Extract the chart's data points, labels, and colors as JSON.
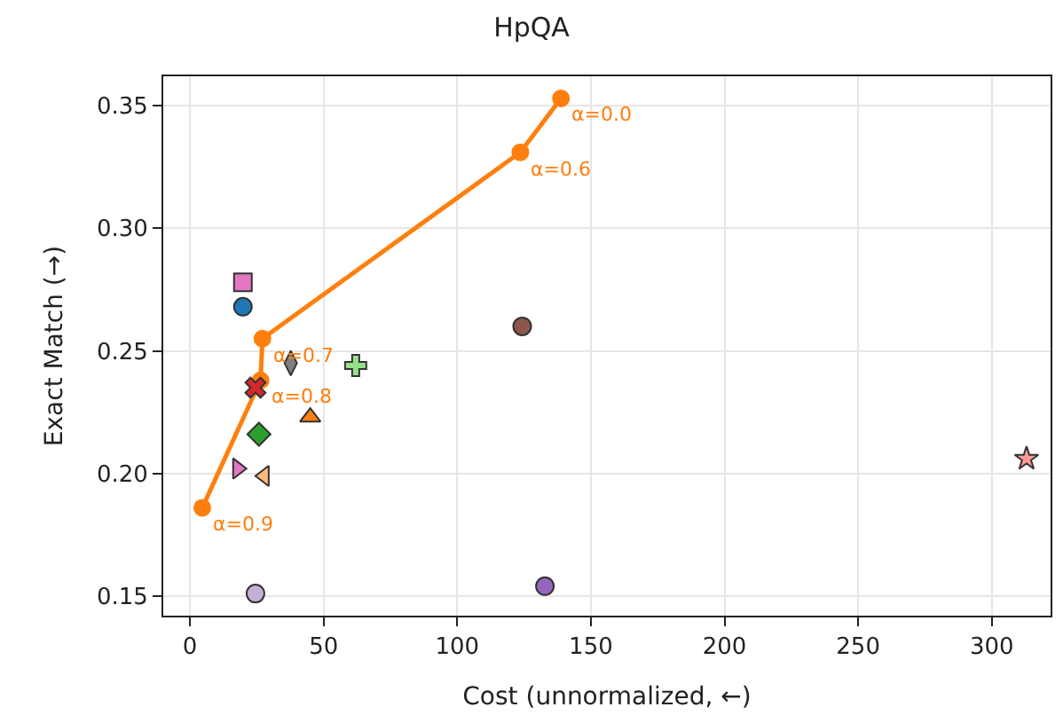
{
  "chart_data": {
    "type": "scatter",
    "title": "HpQA",
    "xlabel": "Cost (unnormalized, ←)",
    "ylabel": "Exact Match (→)",
    "xlim": [
      -10,
      322
    ],
    "xticks": [
      0,
      50,
      100,
      150,
      200,
      250,
      300
    ],
    "ylim": [
      0.142,
      0.362
    ],
    "yticks": [
      {
        "value": 0.15,
        "label": "0.15"
      },
      {
        "value": 0.2,
        "label": "0.20"
      },
      {
        "value": 0.25,
        "label": "0.25"
      },
      {
        "value": 0.3,
        "label": "0.30"
      },
      {
        "value": 0.35,
        "label": "0.35"
      }
    ],
    "grid": true,
    "legend": false,
    "annotations": [
      {
        "text": "α=0.0",
        "x": 138.8,
        "y": 0.353
      },
      {
        "text": "α=0.6",
        "x": 123.6,
        "y": 0.331
      },
      {
        "text": "α=0.7",
        "x": 27.1,
        "y": 0.255
      },
      {
        "text": "α=0.8",
        "x": 26.4,
        "y": 0.238
      },
      {
        "text": "α=0.9",
        "x": 4.6,
        "y": 0.186
      }
    ],
    "series": [
      {
        "type": "line",
        "color": "#ff7f0e",
        "marker": "circle",
        "line_style": "solid",
        "x": [
          138.8,
          123.6,
          27.1,
          26.4,
          4.6
        ],
        "values": [
          0.353,
          0.331,
          0.255,
          0.238,
          0.186
        ]
      },
      {
        "color": "#e377c2",
        "marker": "square",
        "x": [
          19.8
        ],
        "values": [
          0.278
        ]
      },
      {
        "color": "#1f77b4",
        "marker": "circle",
        "x": [
          19.8
        ],
        "values": [
          0.268
        ]
      },
      {
        "color": "#d62728",
        "marker": "cross",
        "x": [
          24.5
        ],
        "values": [
          0.235
        ]
      },
      {
        "color": "#7f7f7f",
        "marker": "diamond-tall",
        "x": [
          37.7
        ],
        "values": [
          0.245
        ]
      },
      {
        "color": "#98df8a",
        "marker": "plus",
        "x": [
          62
        ],
        "values": [
          0.244
        ]
      },
      {
        "color": "#ff7f0e",
        "marker": "triangle",
        "x": [
          45
        ],
        "values": [
          0.223
        ]
      },
      {
        "color": "#2ca02c",
        "marker": "diamond",
        "x": [
          25.8
        ],
        "values": [
          0.216
        ]
      },
      {
        "color": "#e377c2",
        "marker": "triangle-right",
        "x": [
          17.8
        ],
        "values": [
          0.202
        ]
      },
      {
        "color": "#ffbb78",
        "marker": "triangle-left",
        "x": [
          27.8
        ],
        "values": [
          0.199
        ]
      },
      {
        "color": "#c5b0d5",
        "x": [
          24.5
        ],
        "values": [
          0.151
        ]
      },
      {
        "color": "#8c564b",
        "x": [
          124.3
        ],
        "values": [
          0.26
        ]
      },
      {
        "color": "#9467bd",
        "x": [
          132.8
        ],
        "values": [
          0.154
        ]
      },
      {
        "color": "#ff9896",
        "marker": "star",
        "x": [
          313
        ],
        "values": [
          0.206
        ]
      }
    ]
  }
}
